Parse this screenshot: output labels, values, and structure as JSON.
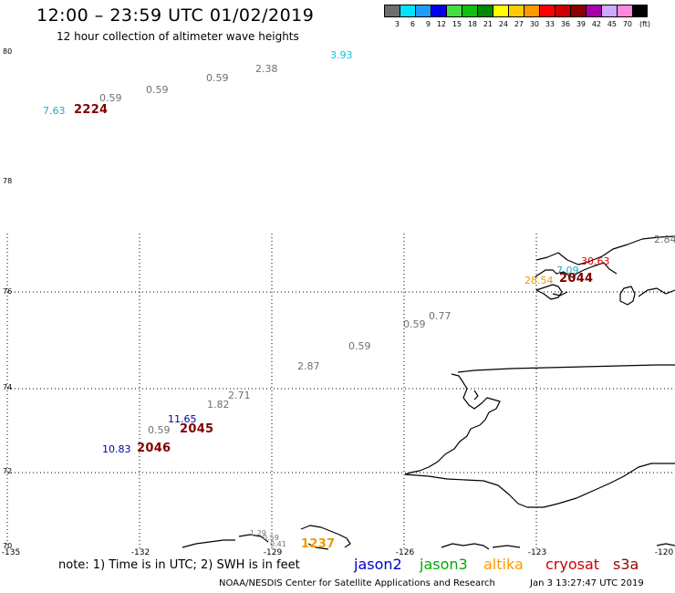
{
  "title": "12:00 – 23:59 UTC 01/02/2019",
  "subtitle": "12 hour collection of altimeter wave heights",
  "legend": {
    "colors": [
      "#6e6e6e",
      "#00e5ff",
      "#1e9bff",
      "#0000ee",
      "#44dd44",
      "#10c010",
      "#008800",
      "#ffff00",
      "#ffcc00",
      "#ff9900",
      "#ff0000",
      "#cc0000",
      "#8b0000",
      "#aa00aa",
      "#ccaaff",
      "#ff88dd",
      "#000000"
    ],
    "labels": [
      "3",
      "6",
      "9",
      "12",
      "15",
      "18",
      "21",
      "24",
      "27",
      "30",
      "33",
      "36",
      "39",
      "42",
      "45",
      "70"
    ],
    "unit": "(ft)"
  },
  "lat_labels": [
    "80",
    "78",
    "76",
    "74",
    "72",
    "70"
  ],
  "lon_labels": [
    "-135",
    "-132",
    "-129",
    "-126",
    "-123",
    "-120"
  ],
  "observations": [
    {
      "text": "3.93",
      "color": "#00c8e0",
      "size": "normal"
    },
    {
      "text": "2.38",
      "color": "#707070",
      "size": "normal"
    },
    {
      "text": "0.59",
      "color": "#707070",
      "size": "normal"
    },
    {
      "text": "0.59",
      "color": "#707070",
      "size": "normal"
    },
    {
      "text": "0.59",
      "color": "#707070",
      "size": "normal"
    },
    {
      "text": "7.63",
      "color": "#22aacc",
      "size": "normal"
    },
    {
      "text": "2224",
      "color": "#800000",
      "size": "big"
    },
    {
      "text": "2.84",
      "color": "#707070",
      "size": "normal"
    },
    {
      "text": "30.63",
      "color": "#dd0000",
      "size": "normal"
    },
    {
      "text": "7.09",
      "color": "#22aacc",
      "size": "normal"
    },
    {
      "text": "28.54",
      "color": "#ee9900",
      "size": "normal"
    },
    {
      "text": "2044",
      "color": "#800000",
      "size": "big"
    },
    {
      "text": "0.77",
      "color": "#707070",
      "size": "normal"
    },
    {
      "text": "0.59",
      "color": "#707070",
      "size": "normal"
    },
    {
      "text": "0.59",
      "color": "#707070",
      "size": "normal"
    },
    {
      "text": "2.87",
      "color": "#707070",
      "size": "normal"
    },
    {
      "text": "2.71",
      "color": "#707070",
      "size": "normal"
    },
    {
      "text": "1.82",
      "color": "#707070",
      "size": "normal"
    },
    {
      "text": "11.65",
      "color": "#0000aa",
      "size": "normal"
    },
    {
      "text": "0.59",
      "color": "#707070",
      "size": "normal"
    },
    {
      "text": "2045",
      "color": "#800000",
      "size": "big"
    },
    {
      "text": "10.83",
      "color": "#0000aa",
      "size": "normal"
    },
    {
      "text": "2046",
      "color": "#800000",
      "size": "big"
    },
    {
      "text": "1.29",
      "color": "#707070",
      "size": "small"
    },
    {
      "text": "0.59",
      "color": "#707070",
      "size": "small"
    },
    {
      "text": "0.41",
      "color": "#707070",
      "size": "small"
    },
    {
      "text": "1237",
      "color": "#ee9900",
      "size": "big"
    }
  ],
  "note": "note: 1) Time is in UTC; 2) SWH is in feet",
  "satellites": [
    {
      "name": "jason2",
      "color": "#0000cc"
    },
    {
      "name": "jason3",
      "color": "#00aa00"
    },
    {
      "name": "altika",
      "color": "#ff9900"
    },
    {
      "name": "cryosat",
      "color": "#cc0000"
    },
    {
      "name": "s3a",
      "color": "#990000"
    }
  ],
  "credit": "NOAA/NESDIS Center for Satellite Applications and Research",
  "credit_time": "Jan  3 13:27:47 UTC 2019"
}
